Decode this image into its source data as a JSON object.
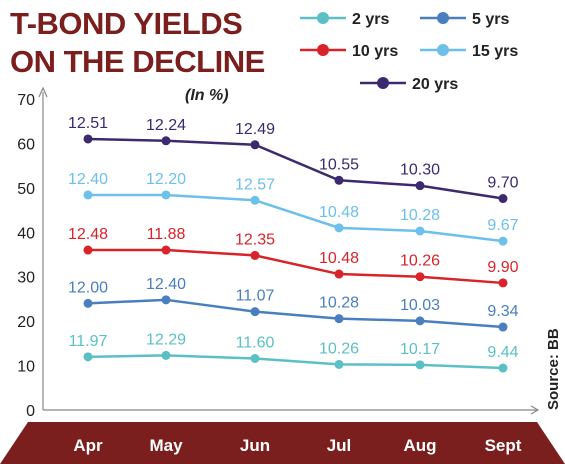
{
  "chart_data": {
    "type": "line",
    "title_line1": "T-BOND YIELDS",
    "title_line2": "ON THE DECLINE",
    "subtitle": "(In %)",
    "source": "Source: BB",
    "categories": [
      "Apr",
      "May",
      "Jun",
      "Jul",
      "Aug",
      "Sept"
    ],
    "y_ticks": [
      "0",
      "10",
      "20",
      "30",
      "40",
      "50",
      "60",
      "70"
    ],
    "ylim": [
      0,
      70
    ],
    "grid": false,
    "legend_position": "top-right",
    "series": [
      {
        "name": "2 yrs",
        "color": "#5bc0c6",
        "plot": [
          11.97,
          12.29,
          11.6,
          10.26,
          10.17,
          9.44
        ],
        "labels": [
          "11.97",
          "12.29",
          "11.60",
          "10.26",
          "10.17",
          "9.44"
        ]
      },
      {
        "name": "5 yrs",
        "color": "#4a7fbf",
        "plot": [
          24.0,
          24.8,
          22.14,
          20.56,
          20.06,
          18.68
        ],
        "labels": [
          "12.00",
          "12.40",
          "11.07",
          "10.28",
          "10.03",
          "9.34"
        ]
      },
      {
        "name": "10 yrs",
        "color": "#d9232a",
        "plot": [
          36.0,
          36.0,
          34.8,
          30.6,
          30.0,
          28.6
        ],
        "labels": [
          "12.48",
          "11.88",
          "12.35",
          "10.48",
          "10.26",
          "9.90"
        ]
      },
      {
        "name": "15 yrs",
        "color": "#6cc0ea",
        "plot": [
          48.4,
          48.4,
          47.2,
          41.0,
          40.3,
          38.0
        ],
        "labels": [
          "12.40",
          "12.20",
          "12.57",
          "10.48",
          "10.28",
          "9.67"
        ]
      },
      {
        "name": "20 yrs",
        "color": "#3d2a6e",
        "plot": [
          61.0,
          60.6,
          59.7,
          51.7,
          50.5,
          47.6
        ],
        "labels": [
          "12.51",
          "12.24",
          "12.49",
          "10.55",
          "10.30",
          "9.70"
        ]
      }
    ]
  },
  "colors": {
    "title": "#7b1e1e",
    "axis_band": "#7b1e1e",
    "x_tick_text": "#ffffff"
  }
}
